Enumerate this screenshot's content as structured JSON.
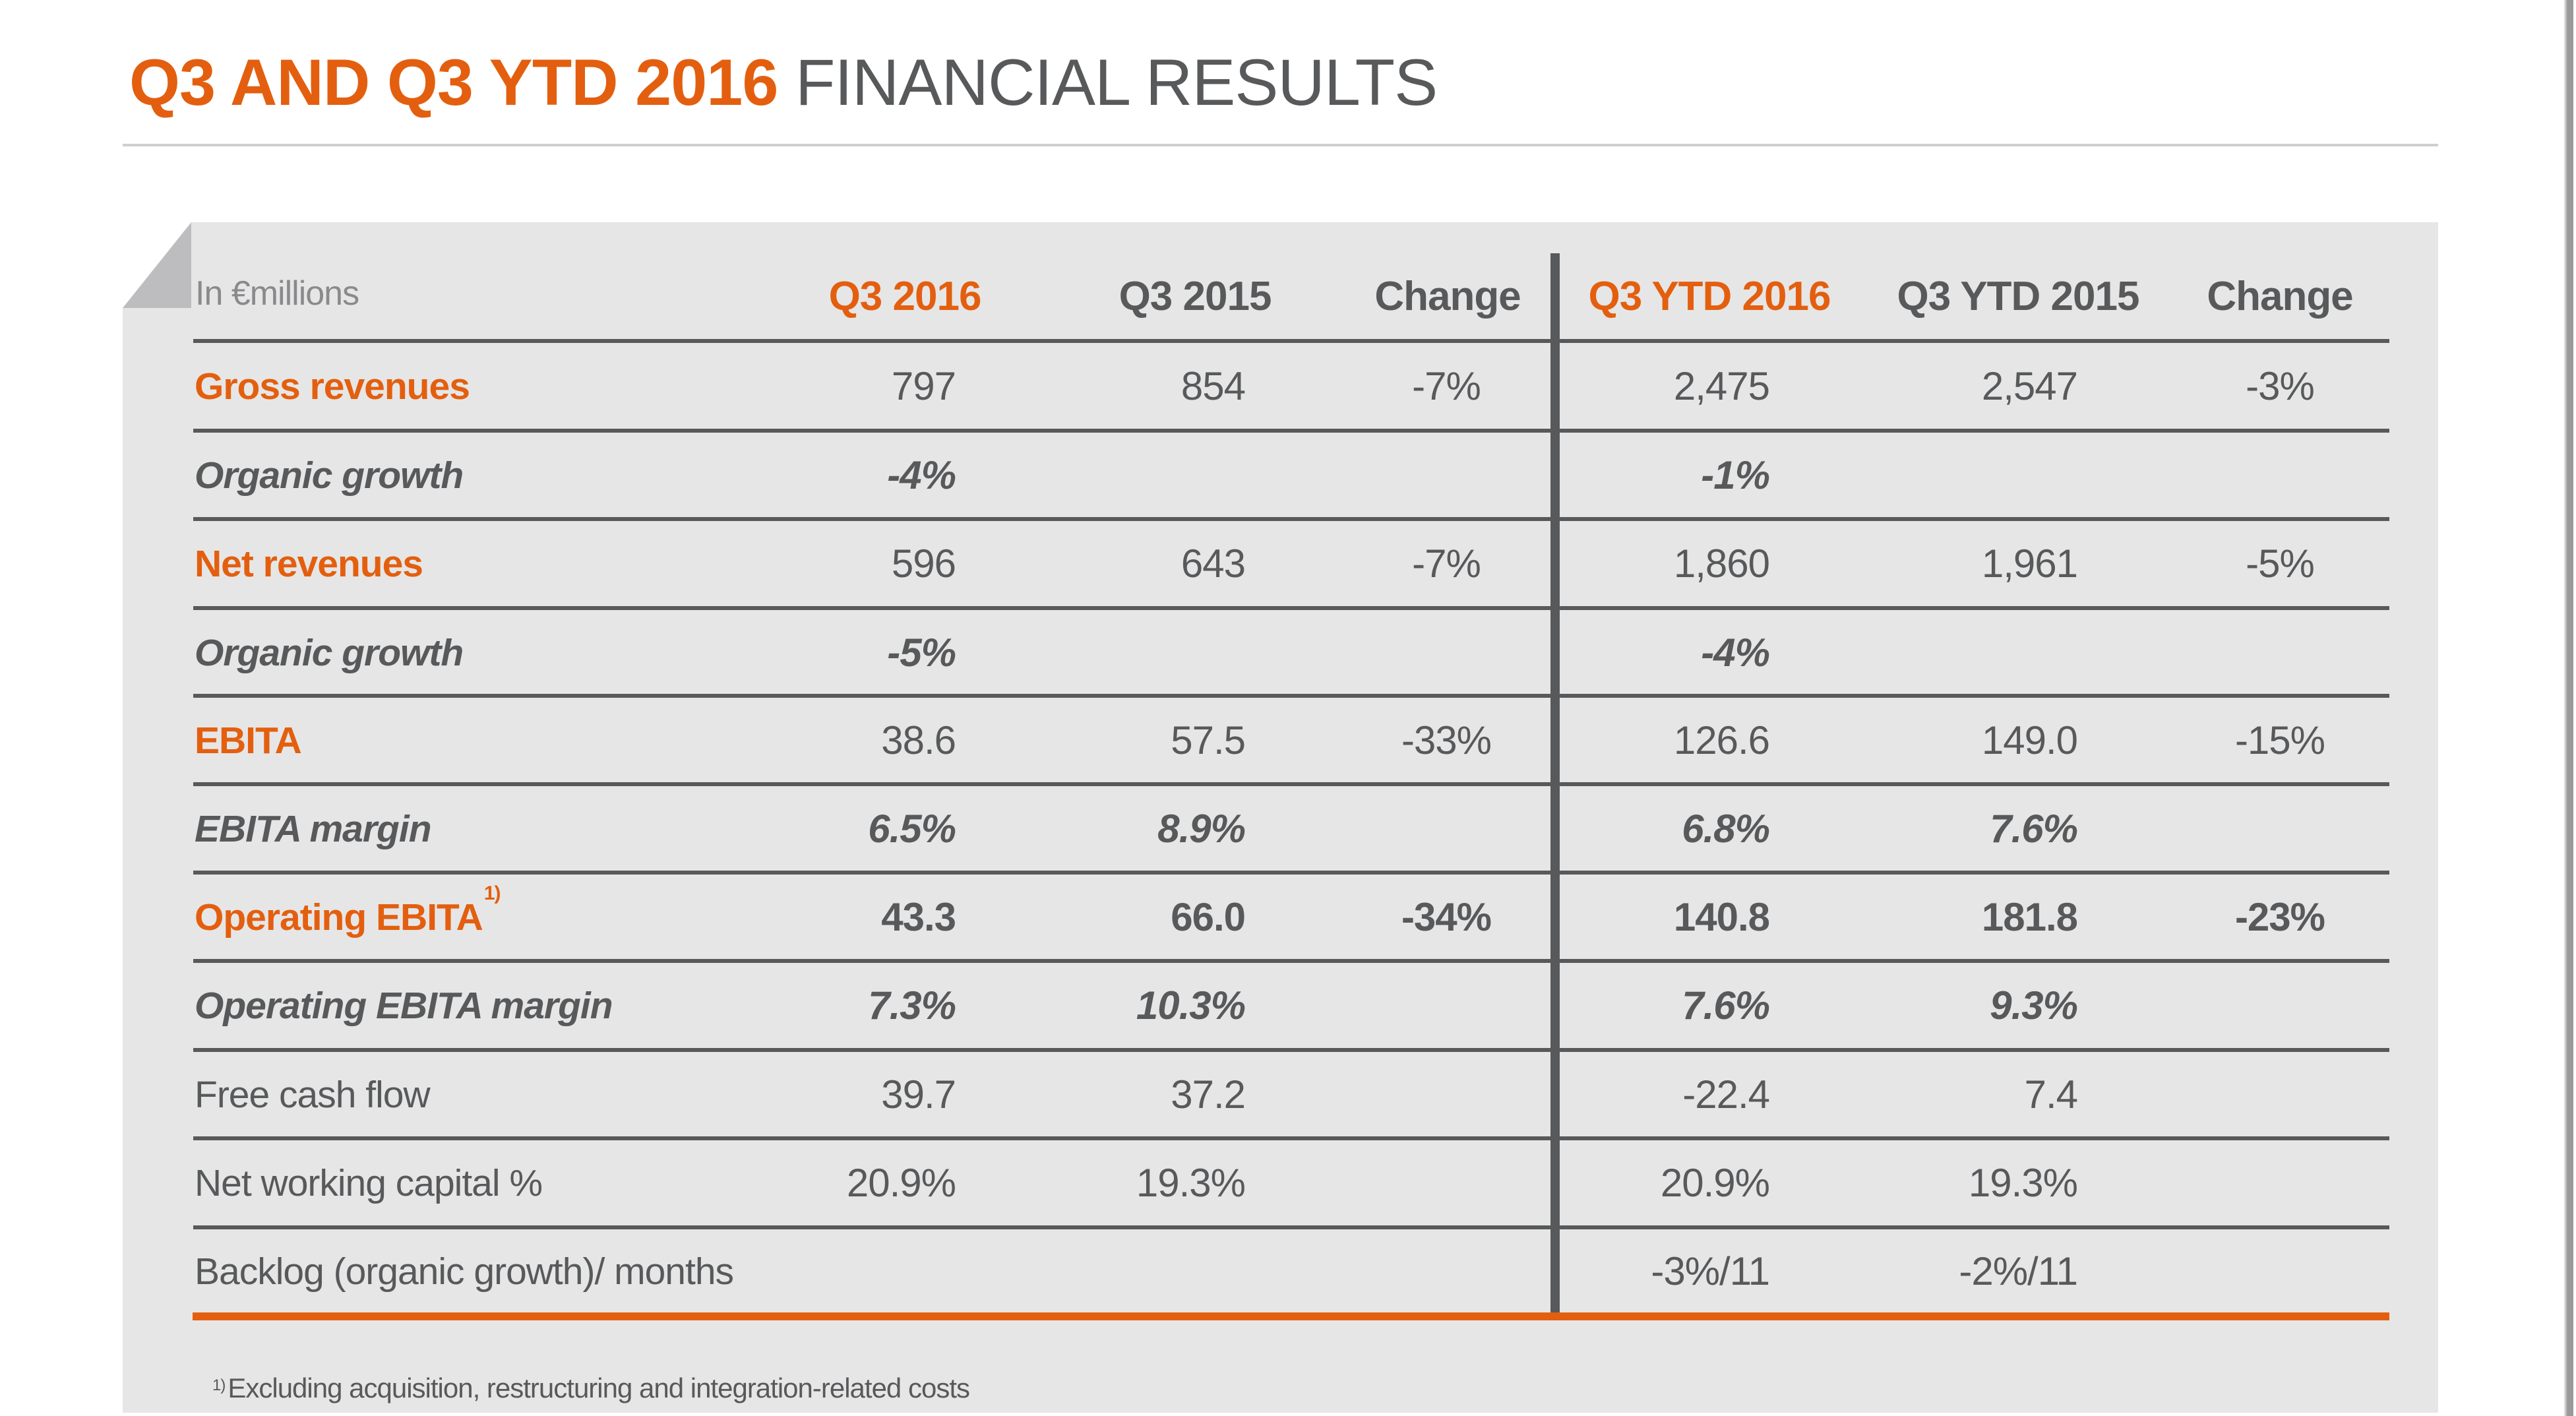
{
  "title": {
    "accent": "Q3 AND Q3 YTD 2016",
    "rest": "FINANCIAL RESULTS"
  },
  "colors": {
    "accent": "#e35f0f",
    "text": "#58595b",
    "panel": "#e6e6e6",
    "rule": "#58595b"
  },
  "table": {
    "unit_label": "In €millions",
    "headers": [
      "Q3 2016",
      "Q3 2015",
      "Change",
      "Q3 YTD 2016",
      "Q3 YTD 2015",
      "Change"
    ],
    "rows": [
      {
        "label": "Gross revenues",
        "sup": "",
        "values": [
          "797",
          "854",
          "-7%",
          "2,475",
          "2,547",
          "-3%"
        ]
      },
      {
        "label": "Organic growth",
        "sup": "",
        "values": [
          "-4%",
          "",
          "",
          "-1%",
          "",
          ""
        ]
      },
      {
        "label": "Net revenues",
        "sup": "",
        "values": [
          "596",
          "643",
          "-7%",
          "1,860",
          "1,961",
          "-5%"
        ]
      },
      {
        "label": "Organic growth",
        "sup": "",
        "values": [
          "-5%",
          "",
          "",
          "-4%",
          "",
          ""
        ]
      },
      {
        "label": "EBITA",
        "sup": "",
        "values": [
          "38.6",
          "57.5",
          "-33%",
          "126.6",
          "149.0",
          "-15%"
        ]
      },
      {
        "label": "EBITA margin",
        "sup": "",
        "values": [
          "6.5%",
          "8.9%",
          "",
          "6.8%",
          "7.6%",
          ""
        ]
      },
      {
        "label": "Operating EBITA",
        "sup": "1)",
        "values": [
          "43.3",
          "66.0",
          "-34%",
          "140.8",
          "181.8",
          "-23%"
        ]
      },
      {
        "label": "Operating EBITA margin",
        "sup": "",
        "values": [
          "7.3%",
          "10.3%",
          "",
          "7.6%",
          "9.3%",
          ""
        ]
      },
      {
        "label": "Free cash flow",
        "sup": "",
        "values": [
          "39.7",
          "37.2",
          "",
          "-22.4",
          "7.4",
          ""
        ]
      },
      {
        "label": "Net working capital %",
        "sup": "",
        "values": [
          "20.9%",
          "19.3%",
          "",
          "20.9%",
          "19.3%",
          ""
        ]
      },
      {
        "label": "Backlog (organic growth)/ months",
        "sup": "",
        "values": [
          "",
          "",
          "",
          "-3%/11",
          "-2%/11",
          ""
        ]
      }
    ]
  },
  "footnote": {
    "marker": "1)",
    "text": "Excluding acquisition, restructuring and integration-related costs"
  }
}
